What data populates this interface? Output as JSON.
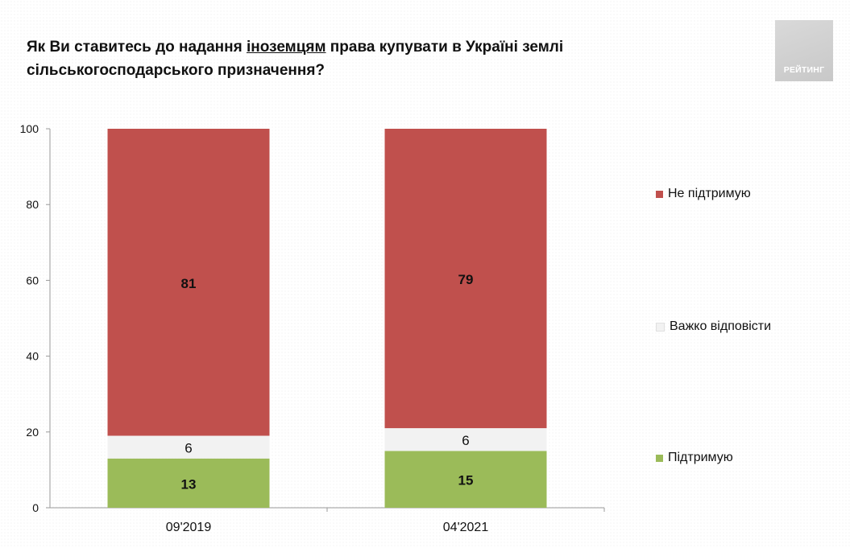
{
  "header": {
    "title_before": "Як Ви ставитесь до надання ",
    "title_underlined": "іноземцям",
    "title_after": " права купувати в Україні землі сільськогосподарського призначення?",
    "logo_text": "РЕЙТИНГ"
  },
  "colors": {
    "not_support": "#c0504d",
    "hard_to_say": "#f2f2f2",
    "support": "#9bbb59"
  },
  "chart_data": {
    "type": "bar",
    "stacked": true,
    "title": "Як Ви ставитесь до надання іноземцям права купувати в Україні землі сільськогосподарського призначення?",
    "xlabel": "",
    "ylabel": "",
    "categories": [
      "09'2019",
      "04'2021"
    ],
    "series": [
      {
        "name": "Підтримую",
        "values": [
          13,
          15
        ],
        "color": "#9bbb59"
      },
      {
        "name": "Важко відповісти",
        "values": [
          6,
          6
        ],
        "color": "#f2f2f2"
      },
      {
        "name": "Не підтримую",
        "values": [
          81,
          79
        ],
        "color": "#c0504d"
      }
    ],
    "ylim": [
      0,
      100
    ],
    "yticks": [
      0,
      20,
      40,
      60,
      80,
      100
    ],
    "grid": false,
    "legend_position": "right",
    "legend_order": [
      "Не підтримую",
      "Важко відповісти",
      "Підтримую"
    ]
  }
}
